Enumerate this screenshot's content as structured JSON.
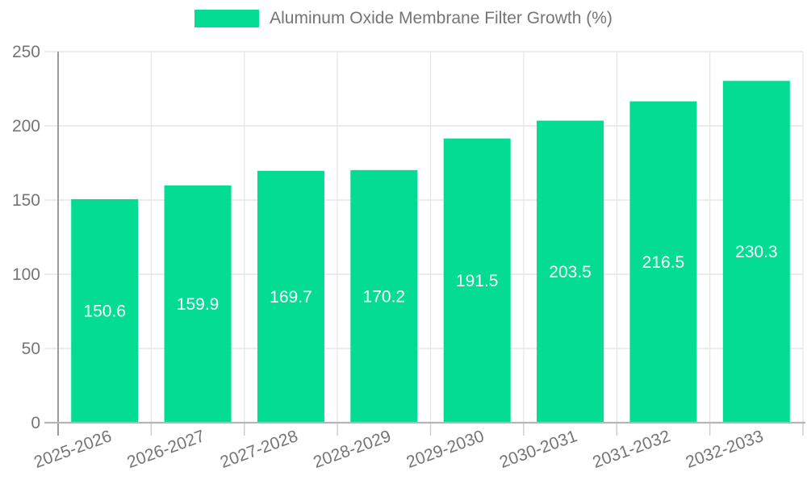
{
  "chart_data": {
    "type": "bar",
    "title": "Aluminum Oxide Membrane Filter Growth (%)",
    "legend_entries": [
      "Aluminum Oxide Membrane Filter Growth (%)"
    ],
    "legend_position": "top-center",
    "categories": [
      "2025-2026",
      "2026-2027",
      "2027-2028",
      "2028-2029",
      "2029-2030",
      "2030-2031",
      "2031-2032",
      "2032-2033"
    ],
    "values": [
      150.6,
      159.9,
      169.7,
      170.2,
      191.5,
      203.5,
      216.5,
      230.3
    ],
    "value_labels": [
      "150.6",
      "159.9",
      "169.7",
      "170.2",
      "191.5",
      "203.5",
      "216.5",
      "230.3"
    ],
    "xlabel": "",
    "ylabel": "",
    "ylim": [
      0,
      250
    ],
    "yticks": [
      0,
      50,
      100,
      150,
      200,
      250
    ],
    "grid": true,
    "x_tick_rotation_deg": -20,
    "colors": {
      "bar": "#03DC92",
      "axis_text": "#757575",
      "value_text": "#ffffff",
      "gridline": "#e6e6e6",
      "y_axis_line": "#9a9a9a",
      "x_axis_line": "#b5b5b5",
      "minor_tick": "#cccccc",
      "background": "#ffffff"
    }
  }
}
